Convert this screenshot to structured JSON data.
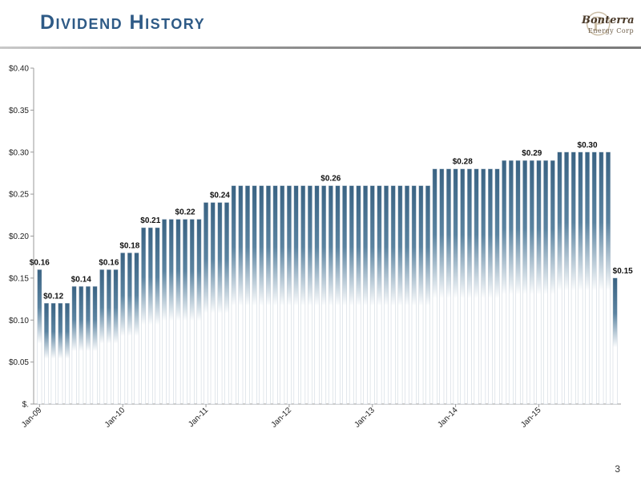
{
  "header": {
    "title": "Dividend History",
    "logo_name": "Bonterra",
    "logo_sub": "Energy Corp"
  },
  "page_number": "3",
  "colors": {
    "title": "#2e5a86",
    "bar_top": "#3a6383",
    "bar_bottom": "#ffffff",
    "bar_outline": "#b8c4d0"
  },
  "chart_data": {
    "type": "bar",
    "title": "",
    "xlabel": "",
    "ylabel": "",
    "ylim": [
      0,
      0.4
    ],
    "y_ticks": [
      "$.",
      "$0.05",
      "$0.10",
      "$0.15",
      "$0.20",
      "$0.25",
      "$0.30",
      "$0.35",
      "$0.40"
    ],
    "x_ticks": [
      "Jan-09",
      "Jan-10",
      "Jan-11",
      "Jan-12",
      "Jan-13",
      "Jan-14",
      "Jan-15"
    ],
    "grid": false,
    "x_start": "Jan-09",
    "x_end": "Feb-15",
    "values": [
      0.16,
      0.12,
      0.12,
      0.12,
      0.12,
      0.14,
      0.14,
      0.14,
      0.14,
      0.16,
      0.16,
      0.16,
      0.18,
      0.18,
      0.18,
      0.21,
      0.21,
      0.21,
      0.22,
      0.22,
      0.22,
      0.22,
      0.22,
      0.22,
      0.24,
      0.24,
      0.24,
      0.24,
      0.26,
      0.26,
      0.26,
      0.26,
      0.26,
      0.26,
      0.26,
      0.26,
      0.26,
      0.26,
      0.26,
      0.26,
      0.26,
      0.26,
      0.26,
      0.26,
      0.26,
      0.26,
      0.26,
      0.26,
      0.26,
      0.26,
      0.26,
      0.26,
      0.26,
      0.26,
      0.26,
      0.26,
      0.26,
      0.28,
      0.28,
      0.28,
      0.28,
      0.28,
      0.28,
      0.28,
      0.28,
      0.28,
      0.28,
      0.29,
      0.29,
      0.29,
      0.29,
      0.29,
      0.29,
      0.29,
      0.29,
      0.3,
      0.3,
      0.3,
      0.3,
      0.3,
      0.3,
      0.3,
      0.3,
      0.15
    ],
    "data_labels": [
      {
        "text": "$0.16",
        "value": 0.16,
        "bar_index": 0
      },
      {
        "text": "$0.12",
        "value": 0.12,
        "bar_index": 2
      },
      {
        "text": "$0.14",
        "value": 0.14,
        "bar_index": 6
      },
      {
        "text": "$0.16",
        "value": 0.16,
        "bar_index": 10
      },
      {
        "text": "$0.18",
        "value": 0.18,
        "bar_index": 13
      },
      {
        "text": "$0.21",
        "value": 0.21,
        "bar_index": 16
      },
      {
        "text": "$0.22",
        "value": 0.22,
        "bar_index": 21
      },
      {
        "text": "$0.24",
        "value": 0.24,
        "bar_index": 26
      },
      {
        "text": "$0.26",
        "value": 0.26,
        "bar_index": 42
      },
      {
        "text": "$0.28",
        "value": 0.28,
        "bar_index": 61
      },
      {
        "text": "$0.29",
        "value": 0.29,
        "bar_index": 71
      },
      {
        "text": "$0.30",
        "value": 0.3,
        "bar_index": 79
      },
      {
        "text": "$0.15",
        "value": 0.15,
        "bar_index": 83
      }
    ]
  }
}
